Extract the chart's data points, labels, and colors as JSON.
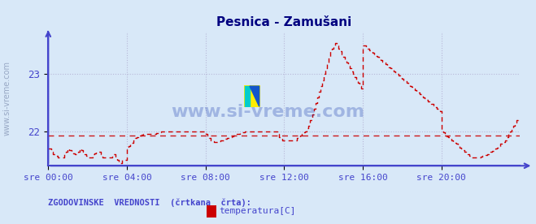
{
  "title": "Pesnica - Zamušani",
  "title_color": "#000080",
  "bg_color": "#d8e8f8",
  "plot_bg_color": "#d8e8f8",
  "grid_color": "#b8b8d8",
  "axis_color": "#4444cc",
  "tick_color": "#4444cc",
  "line_color": "#cc0000",
  "hist_line_value": 21.93,
  "watermark": "www.si-vreme.com",
  "xlabel_ticks": [
    "sre 00:00",
    "sre 04:00",
    "sre 08:00",
    "sre 12:00",
    "sre 16:00",
    "sre 20:00"
  ],
  "xtick_positions": [
    0,
    48,
    96,
    144,
    192,
    240
  ],
  "yticks": [
    22,
    23
  ],
  "ylim": [
    21.4,
    23.75
  ],
  "xlim": [
    0,
    288
  ],
  "legend_label": "temperatura[C]",
  "bottom_text": "ZGODOVINSKE  VREDNOSTI  (črtkana  črta):",
  "figsize": [
    6.59,
    2.76
  ],
  "dpi": 100,
  "temp_data": [
    21.7,
    21.7,
    21.65,
    21.6,
    21.6,
    21.58,
    21.55,
    21.55,
    21.55,
    21.55,
    21.6,
    21.65,
    21.7,
    21.68,
    21.65,
    21.62,
    21.6,
    21.6,
    21.65,
    21.7,
    21.68,
    21.65,
    21.6,
    21.58,
    21.55,
    21.55,
    21.55,
    21.6,
    21.62,
    21.65,
    21.65,
    21.65,
    21.6,
    21.55,
    21.55,
    21.55,
    21.55,
    21.55,
    21.55,
    21.6,
    21.6,
    21.55,
    21.5,
    21.45,
    21.45,
    21.5,
    21.5,
    21.5,
    21.7,
    21.75,
    21.78,
    21.8,
    21.85,
    21.88,
    21.9,
    21.92,
    21.93,
    21.94,
    21.95,
    21.95,
    21.95,
    21.95,
    21.95,
    21.95,
    21.95,
    21.95,
    21.97,
    21.98,
    21.99,
    22.0,
    22.0,
    22.0,
    22.0,
    22.0,
    22.0,
    22.0,
    22.0,
    22.0,
    22.0,
    22.0,
    22.0,
    22.0,
    22.0,
    22.0,
    22.0,
    22.0,
    22.0,
    22.0,
    22.0,
    22.0,
    22.0,
    22.0,
    22.0,
    22.0,
    22.0,
    22.0,
    21.95,
    21.9,
    21.88,
    21.85,
    21.83,
    21.82,
    21.82,
    21.82,
    21.83,
    21.84,
    21.85,
    21.86,
    21.87,
    21.88,
    21.89,
    21.9,
    21.92,
    21.93,
    21.94,
    21.95,
    21.96,
    21.97,
    21.98,
    21.99,
    22.0,
    22.0,
    22.0,
    22.0,
    22.0,
    22.0,
    22.0,
    22.0,
    22.0,
    22.0,
    22.0,
    22.0,
    22.0,
    22.0,
    22.0,
    22.0,
    22.0,
    22.0,
    22.0,
    22.0,
    21.95,
    21.9,
    21.88,
    21.85,
    21.85,
    21.85,
    21.85,
    21.85,
    21.85,
    21.85,
    21.85,
    21.85,
    21.88,
    21.9,
    21.93,
    21.95,
    21.98,
    22.0,
    22.05,
    22.1,
    22.2,
    22.3,
    22.4,
    22.5,
    22.6,
    22.7,
    22.8,
    22.9,
    23.0,
    23.1,
    23.2,
    23.3,
    23.4,
    23.45,
    23.5,
    23.55,
    23.5,
    23.45,
    23.4,
    23.35,
    23.3,
    23.25,
    23.2,
    23.15,
    23.1,
    23.05,
    23.0,
    22.95,
    22.9,
    22.85,
    22.8,
    22.75,
    23.5,
    23.5,
    23.48,
    23.45,
    23.42,
    23.4,
    23.38,
    23.35,
    23.32,
    23.3,
    23.28,
    23.25,
    23.22,
    23.2,
    23.18,
    23.15,
    23.12,
    23.1,
    23.08,
    23.05,
    23.02,
    23.0,
    22.98,
    22.95,
    22.92,
    22.9,
    22.88,
    22.85,
    22.82,
    22.8,
    22.78,
    22.75,
    22.72,
    22.7,
    22.68,
    22.65,
    22.62,
    22.6,
    22.58,
    22.55,
    22.52,
    22.5,
    22.48,
    22.45,
    22.42,
    22.4,
    22.38,
    22.35,
    22.0,
    21.98,
    21.95,
    21.92,
    21.9,
    21.88,
    21.85,
    21.82,
    21.8,
    21.78,
    21.75,
    21.72,
    21.7,
    21.68,
    21.65,
    21.62,
    21.6,
    21.58,
    21.55,
    21.55,
    21.55,
    21.55,
    21.55,
    21.55,
    21.56,
    21.57,
    21.58,
    21.59,
    21.6,
    21.62,
    21.64,
    21.66,
    21.68,
    21.7,
    21.72,
    21.75,
    21.78,
    21.8,
    21.82,
    21.85,
    21.9,
    21.95,
    22.0,
    22.05,
    22.1,
    22.15,
    22.2,
    22.25
  ]
}
